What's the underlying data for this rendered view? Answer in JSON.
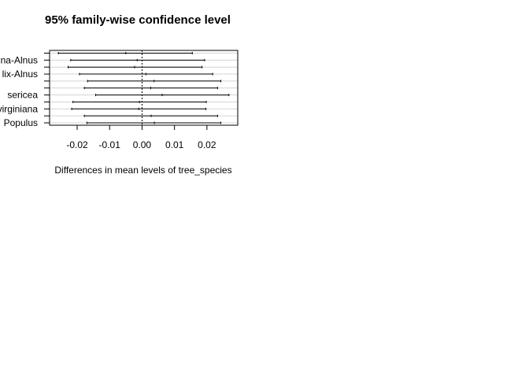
{
  "chart_data": {
    "type": "errorbar",
    "title": "95% family-wise confidence level",
    "xlabel": "Differences in mean levels of tree_species",
    "ylabel": "",
    "xlim": [
      -0.0285,
      0.0295
    ],
    "x_ticks": [
      "-0.02",
      "-0.01",
      "0.00",
      "0.01",
      "0.02"
    ],
    "x_tick_values": [
      -0.02,
      -0.01,
      0.0,
      0.01,
      0.02
    ],
    "grid": true,
    "reference_line": 0.0,
    "colors": {
      "bars": "#000000",
      "grid": "#d3d3d3",
      "ref": "#000000"
    },
    "comparisons": [
      {
        "label": "",
        "estimate": -0.005,
        "lower": -0.0258,
        "upper": 0.0155
      },
      {
        "label": "na-Alnus",
        "estimate": -0.0015,
        "lower": -0.022,
        "upper": 0.0193
      },
      {
        "label": "",
        "estimate": -0.0023,
        "lower": -0.0228,
        "upper": 0.0185
      },
      {
        "label": "lix-Alnus",
        "estimate": 0.0012,
        "lower": -0.0193,
        "upper": 0.0218
      },
      {
        "label": "",
        "estimate": 0.0037,
        "lower": -0.0168,
        "upper": 0.0243
      },
      {
        "label": "",
        "estimate": 0.0027,
        "lower": -0.0178,
        "upper": 0.0233
      },
      {
        "label": "sericea",
        "estimate": 0.0062,
        "lower": -0.0143,
        "upper": 0.0268
      },
      {
        "label": "",
        "estimate": -0.0008,
        "lower": -0.0213,
        "upper": 0.0198
      },
      {
        "label": "virginiana",
        "estimate": -0.001,
        "lower": -0.0217,
        "upper": 0.0197
      },
      {
        "label": "",
        "estimate": 0.0028,
        "lower": -0.0178,
        "upper": 0.0233
      },
      {
        "label": "Populus",
        "estimate": 0.0038,
        "lower": -0.017,
        "upper": 0.0243
      }
    ]
  }
}
